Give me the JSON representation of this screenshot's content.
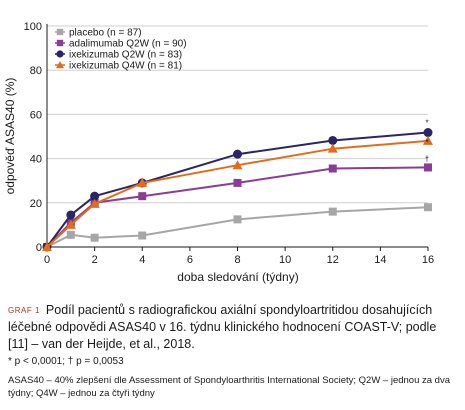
{
  "chart_data": {
    "type": "line",
    "x": [
      0,
      1,
      2,
      4,
      8,
      12,
      16
    ],
    "xlim": [
      0,
      16
    ],
    "ylim": [
      0,
      100
    ],
    "xticks": [
      "0",
      "2",
      "4",
      "6",
      "8",
      "10",
      "12",
      "14",
      "16"
    ],
    "yticks": [
      "0",
      "20",
      "40",
      "60",
      "80",
      "100"
    ],
    "xlabel": "doba sledování (týdny)",
    "ylabel": "odpověď ASAS40 (%)",
    "grid": "horizontal",
    "legend_position": "top-left",
    "series": [
      {
        "name": "placebo (n = 87)",
        "color": "#a6a6a6",
        "marker": "square",
        "values": [
          0,
          5.5,
          4.2,
          5.2,
          12.5,
          16,
          18
        ]
      },
      {
        "name": "adalimumab Q2W (n = 90)",
        "color": "#8a3c96",
        "marker": "square",
        "values": [
          0,
          11,
          20,
          23,
          29,
          35.5,
          36
        ]
      },
      {
        "name": "ixekizumab Q2W (n = 83)",
        "color": "#2b2563",
        "marker": "circle",
        "values": [
          0,
          14.5,
          23,
          29,
          42,
          48.2,
          51.8
        ]
      },
      {
        "name": "ixekizumab Q4W (n = 81)",
        "color": "#e36c1b",
        "marker": "triangle",
        "values": [
          0,
          10,
          19.5,
          29,
          37,
          44.5,
          48
        ]
      }
    ],
    "annotations": [
      {
        "x": 16,
        "series": "ixekizumab Q2W (n = 83)",
        "text": "*"
      },
      {
        "x": 16,
        "series": "ixekizumab Q4W (n = 81)",
        "text": "*"
      },
      {
        "x": 16,
        "series": "adalimumab Q2W (n = 90)",
        "text": "†"
      }
    ]
  },
  "caption": {
    "label": "GRAF 1",
    "title": "Podíl pacientů s radiografickou axiální spondyloartritidou dosahujících léčebné odpovědi ASAS40 v 16. týdnu klinického hodnocení COAST-V; podle [11] – van der Heijde, et al., 2018.",
    "significance": "* p < 0,0001; † p = 0,0053",
    "abbreviations": "ASAS40 – 40% zlepšení dle Assessment of Spondyloarthritis International Society; Q2W – jednou za dva týdny; Q4W – jednou za čtyři týdny"
  }
}
